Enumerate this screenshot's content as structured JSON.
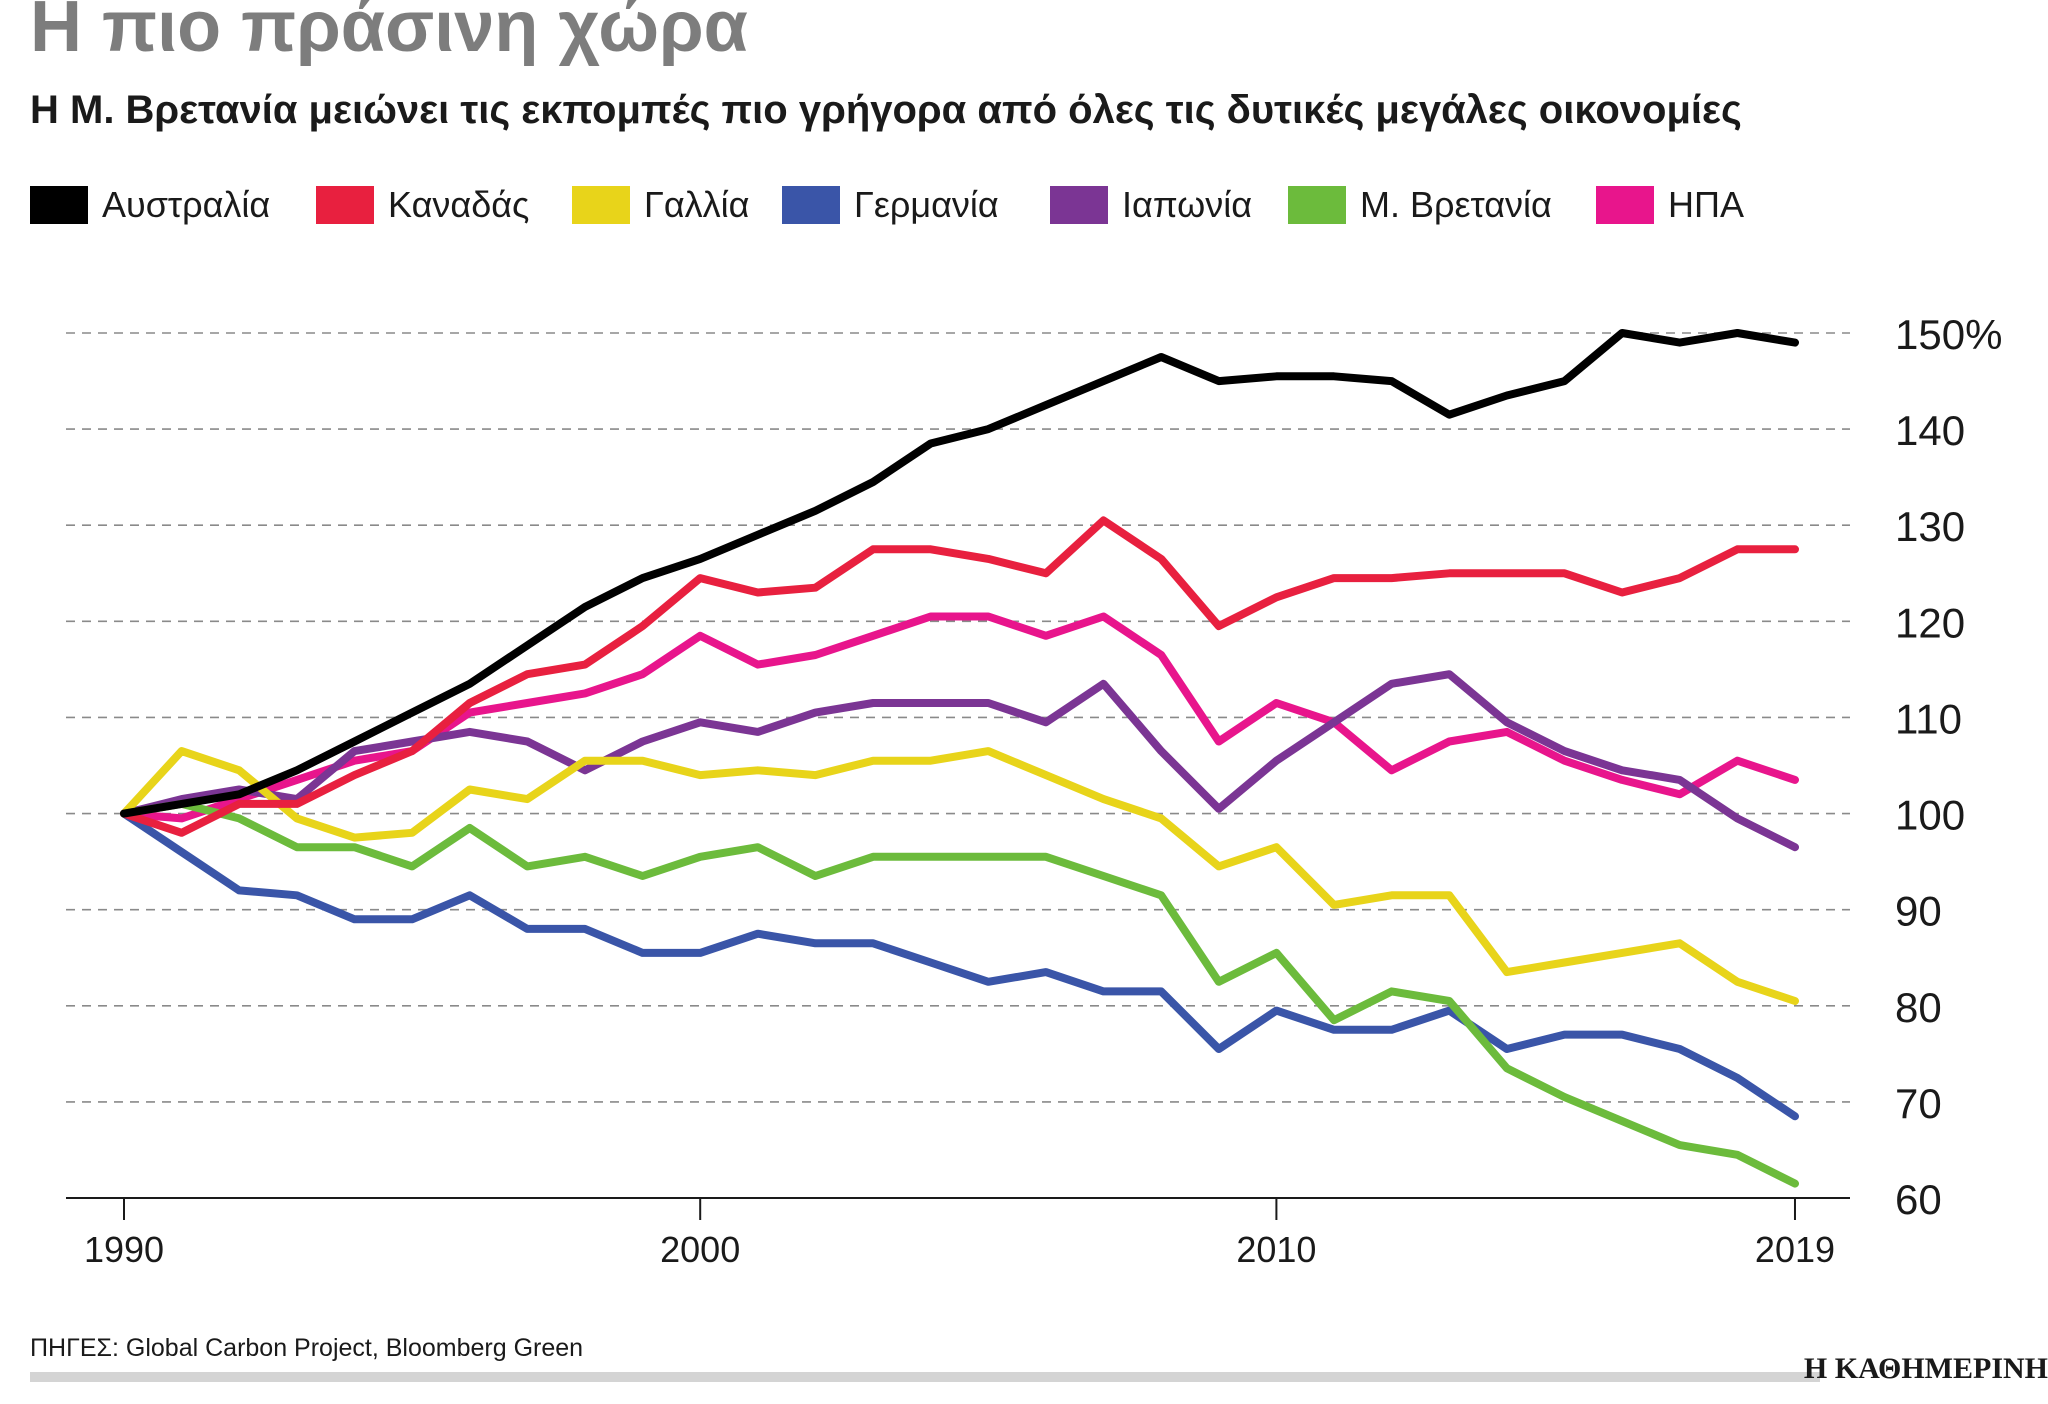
{
  "chart_data": {
    "type": "line",
    "title": "Η πιο πράσινη χώρα",
    "subtitle": "Η Μ. Βρετανία μειώνει τις εκπομπές πιο γρήγορα από όλες τις δυτικές μεγάλες οικονομίες",
    "xlabel": "",
    "ylabel": "",
    "x": [
      1990,
      1991,
      1992,
      1993,
      1994,
      1995,
      1996,
      1997,
      1998,
      1999,
      2000,
      2001,
      2002,
      2003,
      2004,
      2005,
      2006,
      2007,
      2008,
      2009,
      2010,
      2011,
      2012,
      2013,
      2014,
      2015,
      2016,
      2017,
      2018,
      2019
    ],
    "xlim": [
      1989,
      2020
    ],
    "ylim": [
      60,
      150
    ],
    "x_ticks": [
      1990,
      2000,
      2010,
      2019
    ],
    "x_tick_labels": [
      "1990",
      "2000",
      "2010",
      "2019"
    ],
    "y_ticks": [
      60,
      70,
      80,
      90,
      100,
      110,
      120,
      130,
      140,
      150
    ],
    "y_tick_labels": [
      "60",
      "70",
      "80",
      "90",
      "100",
      "110",
      "120",
      "130",
      "140",
      "150%"
    ],
    "grid": "horizontal dashed",
    "legend_position": "top",
    "series": [
      {
        "name": "Αυστραλία",
        "color": "#000000",
        "values": [
          100,
          101,
          102,
          104.5,
          107.5,
          110.5,
          113.5,
          117.5,
          121.5,
          124.5,
          126.5,
          129,
          131.5,
          134.5,
          138.5,
          140,
          142.5,
          145,
          147.5,
          145,
          145.5,
          145.5,
          145,
          141.5,
          143.5,
          145,
          150,
          149,
          150,
          149
        ]
      },
      {
        "name": "Καναδάς",
        "color": "#e8203f",
        "values": [
          100,
          98,
          101,
          101,
          104,
          106.5,
          111.5,
          114.5,
          115.5,
          119.5,
          124.5,
          123,
          123.5,
          127.5,
          127.5,
          126.5,
          125,
          130.5,
          126.5,
          119.5,
          122.5,
          124.5,
          124.5,
          125,
          125,
          125,
          123,
          124.5,
          127.5,
          127.5
        ]
      },
      {
        "name": "Γαλλία",
        "color": "#e8d41a",
        "values": [
          100,
          106.5,
          104.5,
          99.5,
          97.5,
          98,
          102.5,
          101.5,
          105.5,
          105.5,
          104,
          104.5,
          104,
          105.5,
          105.5,
          106.5,
          104,
          101.5,
          99.5,
          94.5,
          96.5,
          90.5,
          91.5,
          91.5,
          83.5,
          84.5,
          85.5,
          86.5,
          82.5,
          80.5
        ]
      },
      {
        "name": "Γερμανία",
        "color": "#3a55a8",
        "values": [
          100,
          96,
          92,
          91.5,
          89,
          89,
          91.5,
          88,
          88,
          85.5,
          85.5,
          87.5,
          86.5,
          86.5,
          84.5,
          82.5,
          83.5,
          81.5,
          81.5,
          75.5,
          79.5,
          77.5,
          77.5,
          79.5,
          75.5,
          77,
          77,
          75.5,
          72.5,
          68.5
        ]
      },
      {
        "name": "Ιαπωνία",
        "color": "#7b3594",
        "values": [
          100,
          101.5,
          102.5,
          101.5,
          106.5,
          107.5,
          108.5,
          107.5,
          104.5,
          107.5,
          109.5,
          108.5,
          110.5,
          111.5,
          111.5,
          111.5,
          109.5,
          113.5,
          106.5,
          100.5,
          105.5,
          109.5,
          113.5,
          114.5,
          109.5,
          106.5,
          104.5,
          103.5,
          99.5,
          96.5
        ]
      },
      {
        "name": "Μ. Βρετανία",
        "color": "#6cbb3c",
        "values": [
          100,
          101,
          99.5,
          96.5,
          96.5,
          94.5,
          98.5,
          94.5,
          95.5,
          93.5,
          95.5,
          96.5,
          93.5,
          95.5,
          95.5,
          95.5,
          95.5,
          93.5,
          91.5,
          82.5,
          85.5,
          78.5,
          81.5,
          80.5,
          73.5,
          70.5,
          68,
          65.5,
          64.5,
          61.5
        ]
      },
      {
        "name": "ΗΠΑ",
        "color": "#e8158c",
        "values": [
          100,
          99.5,
          101.5,
          103.5,
          105.5,
          106.5,
          110.5,
          111.5,
          112.5,
          114.5,
          118.5,
          115.5,
          116.5,
          118.5,
          120.5,
          120.5,
          118.5,
          120.5,
          116.5,
          107.5,
          111.5,
          109.5,
          104.5,
          107.5,
          108.5,
          105.5,
          103.5,
          102,
          105.5,
          103.5
        ]
      }
    ]
  },
  "source": "ΠΗΓΕΣ: Global Carbon Project, Bloomberg Green",
  "brand": "Η ΚΑΘΗΜΕΡΙΝΗ"
}
